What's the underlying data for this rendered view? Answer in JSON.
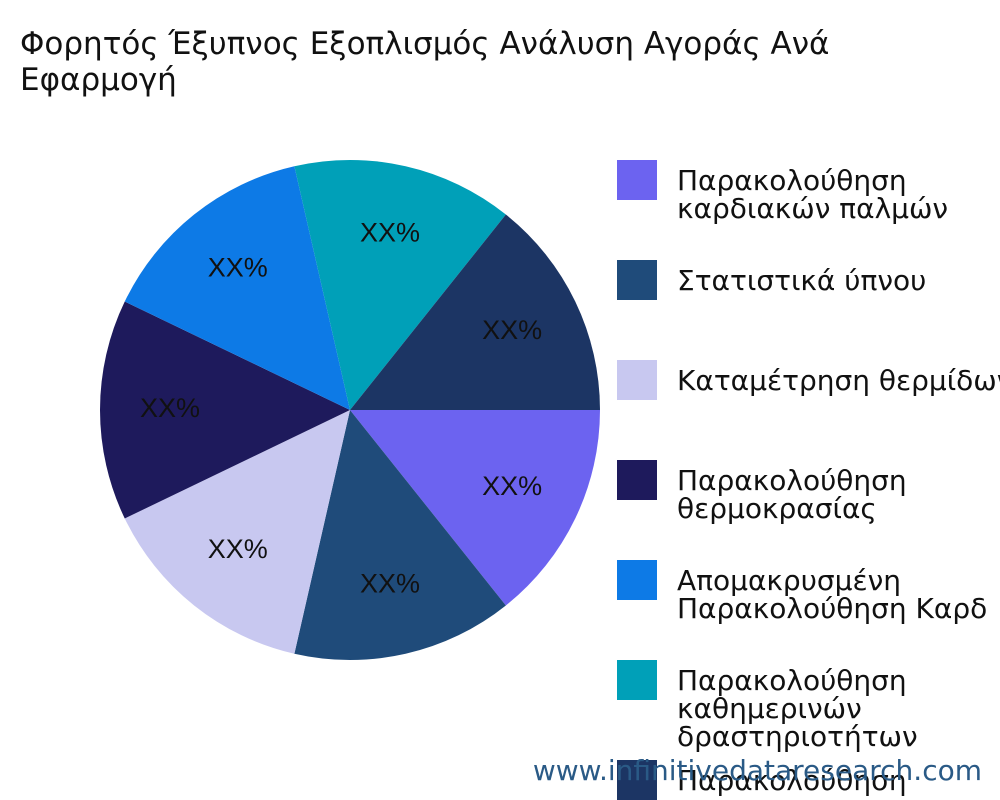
{
  "chart_data": {
    "type": "pie",
    "title": "Φορητός Έξυπνος Εξοπλισμός Ανάλυση Αγοράς Ανά Εφαρμογή",
    "series": [
      {
        "name": "Παρακολούθηση καρδιακών παλμών",
        "color": "#6c63f0",
        "values": [
          14.29
        ],
        "value_labels": [
          "XX%"
        ]
      },
      {
        "name": "Στατιστικά ύπνου",
        "color": "#1f4b7a",
        "values": [
          14.29
        ],
        "value_labels": [
          "XX%"
        ]
      },
      {
        "name": "Καταμέτρηση θερμίδων",
        "color": "#c8c8f0",
        "values": [
          14.29
        ],
        "value_labels": [
          "XX%"
        ]
      },
      {
        "name": "Παρακολούθηση θερμοκρασίας",
        "color": "#1e1a5c",
        "values": [
          14.29
        ],
        "value_labels": [
          "XX%"
        ]
      },
      {
        "name": "Απομακρυσμένη Παρακολούθηση Καρδ",
        "color": "#0d7ae6",
        "values": [
          14.29
        ],
        "value_labels": [
          "XX%"
        ]
      },
      {
        "name": "Παρακολούθηση καθημερινών δραστηριοτήτων",
        "color": "#00a0b8",
        "values": [
          14.29
        ],
        "value_labels": [
          "XX%"
        ]
      },
      {
        "name": "Παρακολούθηση",
        "color": "#1c3564",
        "values": [
          14.29
        ],
        "value_labels": [
          "XX%"
        ]
      }
    ],
    "watermark": "www.infinitivedataresearch.com"
  }
}
